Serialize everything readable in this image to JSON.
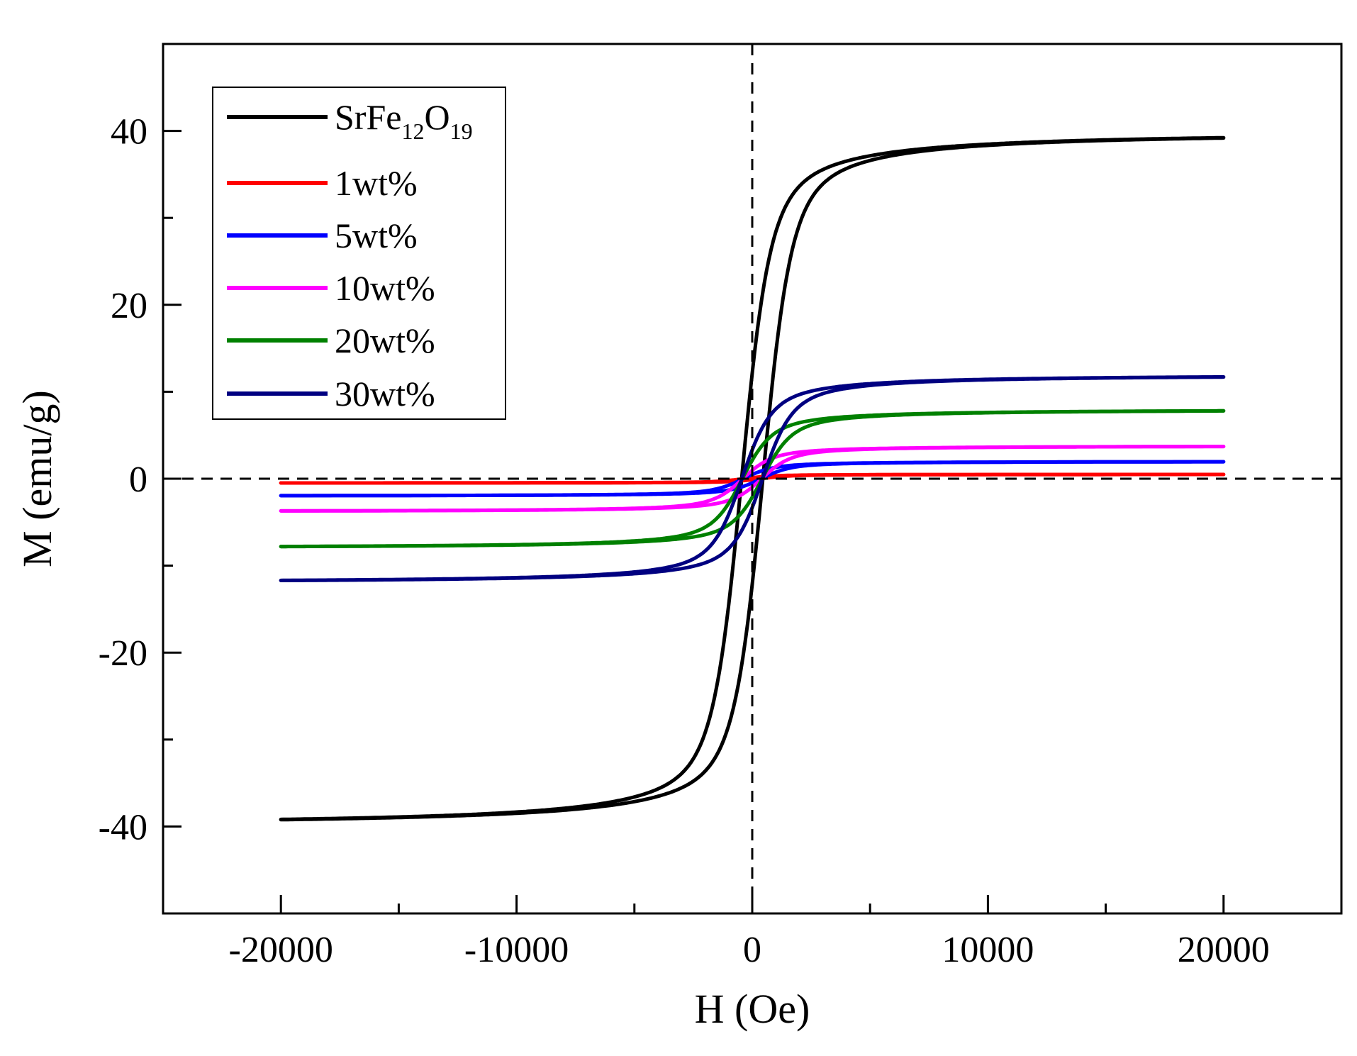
{
  "chart_data": {
    "type": "line",
    "title": "",
    "xlabel": "H (Oe)",
    "ylabel": "M (emu/g)",
    "xlim": [
      -25000,
      25000
    ],
    "ylim": [
      -50,
      50
    ],
    "xticks": [
      -20000,
      -10000,
      0,
      10000,
      20000
    ],
    "xtick_labels": [
      "-20000",
      "-10000",
      "0",
      "10000",
      "20000"
    ],
    "yticks": [
      -40,
      -20,
      0,
      20,
      40
    ],
    "ytick_labels": [
      "-40",
      "-20",
      "0",
      "20",
      "40"
    ],
    "grid": false,
    "legend_position": "top-left",
    "reference_lines": {
      "x": 0,
      "y": 0,
      "style": "dashed"
    },
    "series": [
      {
        "name": "SrFe12O19",
        "legend_main": "SrFe",
        "legend_sub1": "12",
        "legend_mid": "O",
        "legend_sub2": "19",
        "color": "#000000",
        "ms": 40,
        "hc": 450,
        "h0": 1100,
        "k": 0.6,
        "a": 0.7
      },
      {
        "name": "1wt%",
        "legend_label": "1wt%",
        "color": "#ff0000",
        "ms": 0.5,
        "hc": 350,
        "h0": 1100,
        "k": 0.55,
        "a": 0.7
      },
      {
        "name": "5wt%",
        "legend_label": "5wt%",
        "color": "#0000ff",
        "ms": 2.0,
        "hc": 380,
        "h0": 1100,
        "k": 0.5,
        "a": 0.7
      },
      {
        "name": "10wt%",
        "legend_label": "10wt%",
        "color": "#ff00ff",
        "ms": 3.8,
        "hc": 400,
        "h0": 1100,
        "k": 0.5,
        "a": 0.7
      },
      {
        "name": "20wt%",
        "legend_label": "20wt%",
        "color": "#008000",
        "ms": 8.0,
        "hc": 420,
        "h0": 1100,
        "k": 0.5,
        "a": 0.7
      },
      {
        "name": "30wt%",
        "legend_label": "30wt%",
        "color": "#000080",
        "ms": 12.0,
        "hc": 440,
        "h0": 1100,
        "k": 0.5,
        "a": 0.7
      }
    ]
  }
}
